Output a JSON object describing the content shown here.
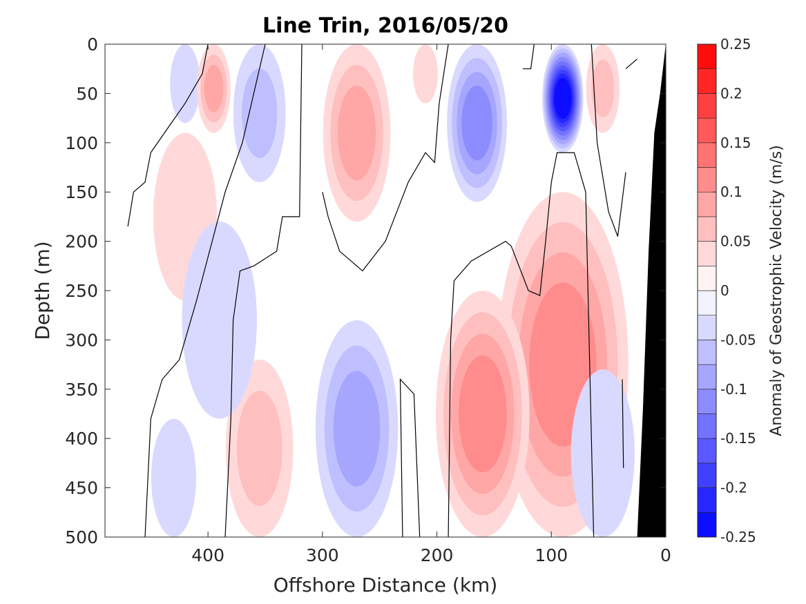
{
  "chart_data": {
    "type": "heatmap",
    "title": "Line Trin, 2016/05/20",
    "xlabel": "Offshore Distance (km)",
    "ylabel": "Depth (m)",
    "colorbar_label": "Anomaly of Geostrophic Velocity (m/s)",
    "xlim": [
      490,
      0
    ],
    "ylim": [
      0,
      500
    ],
    "x_ticks": [
      400,
      300,
      200,
      100,
      0
    ],
    "y_ticks": [
      0,
      50,
      100,
      150,
      200,
      250,
      300,
      350,
      400,
      450,
      500
    ],
    "colorbar_range": [
      -0.25,
      0.25
    ],
    "colorbar_levels": [
      -0.25,
      -0.225,
      -0.2,
      -0.175,
      -0.15,
      -0.125,
      -0.1,
      -0.075,
      -0.05,
      -0.025,
      0,
      0.025,
      0.05,
      0.075,
      0.1,
      0.125,
      0.15,
      0.175,
      0.2,
      0.225,
      0.25
    ],
    "colorbar_ticks": [
      -0.25,
      -0.2,
      -0.15,
      -0.1,
      -0.05,
      0,
      0.05,
      0.1,
      0.15,
      0.2,
      0.25
    ],
    "colormap": {
      "negative": "#0000ff",
      "zero": "#ffffff",
      "positive": "#ff0000"
    },
    "zero_contour_color": "#000000",
    "bathymetry_color": "#000000",
    "features": [
      {
        "x": 420,
        "z0": 0,
        "z1": 80,
        "peak": -0.03
      },
      {
        "x": 395,
        "z0": 0,
        "z1": 90,
        "peak": 0.09
      },
      {
        "x": 420,
        "z0": 90,
        "z1": 260,
        "peak": 0.04
      },
      {
        "x": 355,
        "z0": 0,
        "z1": 140,
        "peak": -0.07
      },
      {
        "x": 270,
        "z0": 0,
        "z1": 180,
        "peak": 0.08
      },
      {
        "x": 210,
        "z0": 0,
        "z1": 60,
        "peak": 0.02
      },
      {
        "x": 165,
        "z0": 0,
        "z1": 160,
        "peak": -0.1
      },
      {
        "x": 90,
        "z0": 0,
        "z1": 110,
        "peak": -0.24
      },
      {
        "x": 55,
        "z0": 0,
        "z1": 90,
        "peak": 0.07
      },
      {
        "x": 90,
        "z0": 150,
        "z1": 500,
        "peak": 0.11
      },
      {
        "x": 160,
        "z0": 250,
        "z1": 500,
        "peak": 0.12
      },
      {
        "x": 270,
        "z0": 280,
        "z1": 500,
        "peak": -0.08
      },
      {
        "x": 355,
        "z0": 320,
        "z1": 500,
        "peak": 0.06
      },
      {
        "x": 430,
        "z0": 380,
        "z1": 500,
        "peak": -0.04
      },
      {
        "x": 390,
        "z0": 180,
        "z1": 380,
        "peak": -0.03
      },
      {
        "x": 55,
        "z0": 330,
        "z1": 500,
        "peak": -0.03
      }
    ],
    "zero_contours": [
      [
        [
          470,
          185
        ],
        [
          465,
          150
        ],
        [
          455,
          140
        ],
        [
          450,
          110
        ],
        [
          435,
          85
        ],
        [
          420,
          60
        ],
        [
          405,
          30
        ],
        [
          400,
          0
        ]
      ],
      [
        [
          455,
          500
        ],
        [
          450,
          380
        ],
        [
          440,
          340
        ],
        [
          425,
          320
        ],
        [
          410,
          260
        ],
        [
          385,
          150
        ],
        [
          370,
          100
        ],
        [
          360,
          50
        ],
        [
          350,
          0
        ]
      ],
      [
        [
          385,
          500
        ],
        [
          380,
          380
        ],
        [
          378,
          280
        ],
        [
          372,
          230
        ],
        [
          360,
          225
        ],
        [
          340,
          210
        ],
        [
          335,
          175
        ],
        [
          320,
          175
        ],
        [
          318,
          0
        ]
      ],
      [
        [
          190,
          500
        ],
        [
          188,
          300
        ],
        [
          185,
          240
        ],
        [
          170,
          220
        ],
        [
          140,
          200
        ],
        [
          135,
          205
        ],
        [
          120,
          250
        ],
        [
          110,
          255
        ],
        [
          105,
          200
        ],
        [
          100,
          140
        ],
        [
          95,
          110
        ],
        [
          80,
          110
        ],
        [
          70,
          150
        ],
        [
          63,
          500
        ]
      ],
      [
        [
          230,
          500
        ],
        [
          232,
          340
        ],
        [
          220,
          355
        ],
        [
          215,
          500
        ]
      ],
      [
        [
          300,
          150
        ],
        [
          295,
          175
        ],
        [
          285,
          210
        ],
        [
          265,
          230
        ],
        [
          245,
          200
        ],
        [
          225,
          140
        ],
        [
          210,
          110
        ],
        [
          202,
          120
        ],
        [
          198,
          60
        ],
        [
          190,
          0
        ]
      ],
      [
        [
          125,
          25
        ],
        [
          118,
          25
        ],
        [
          115,
          0
        ]
      ],
      [
        [
          65,
          0
        ],
        [
          60,
          100
        ],
        [
          50,
          170
        ],
        [
          42,
          195
        ],
        [
          35,
          130
        ]
      ],
      [
        [
          35,
          25
        ],
        [
          25,
          15
        ]
      ],
      [
        [
          38,
          340
        ],
        [
          37,
          430
        ]
      ]
    ],
    "bathymetry": [
      [
        0,
        0
      ],
      [
        5,
        50
      ],
      [
        10,
        90
      ],
      [
        15,
        210
      ],
      [
        20,
        370
      ],
      [
        25,
        500
      ]
    ]
  }
}
